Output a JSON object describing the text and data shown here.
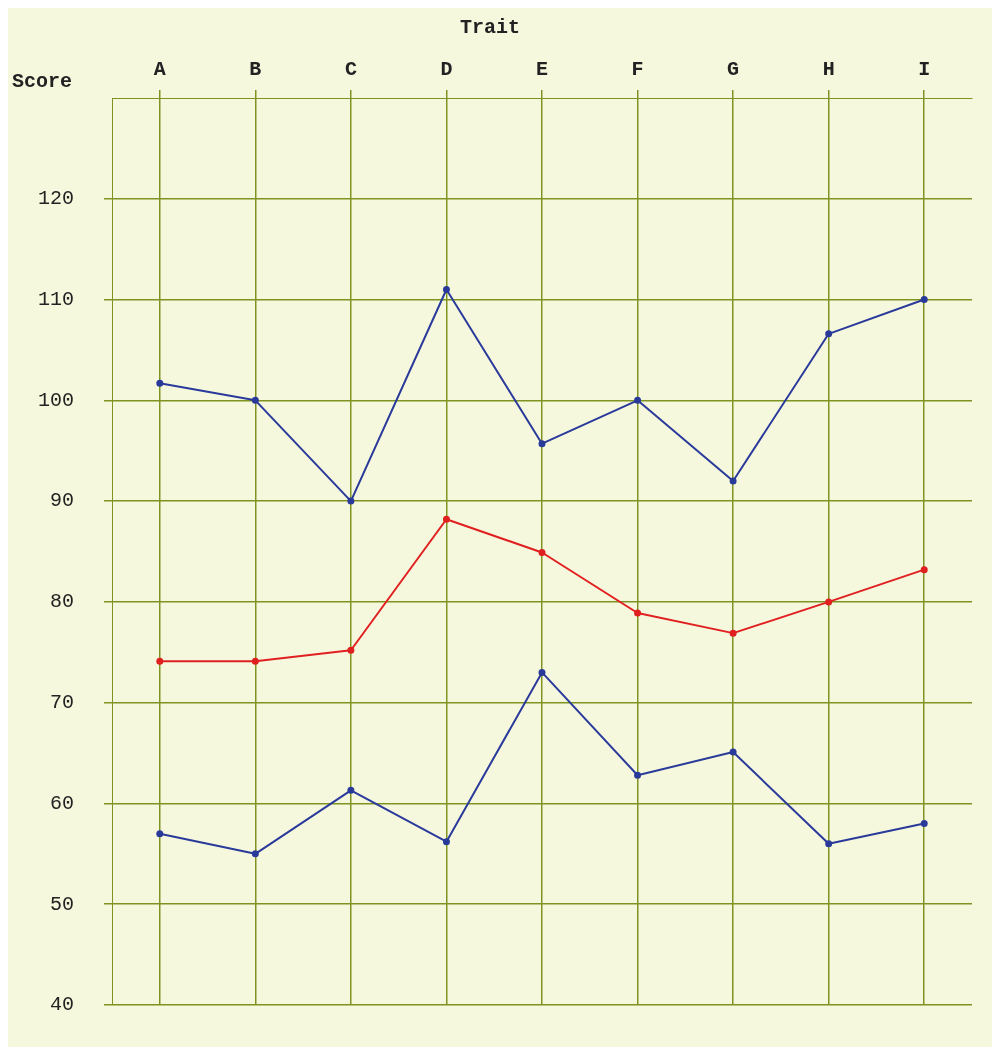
{
  "chart_data": {
    "type": "line",
    "title": "Trait",
    "ylabel": "Score",
    "categories": [
      "A",
      "B",
      "C",
      "D",
      "E",
      "F",
      "G",
      "H",
      "I"
    ],
    "series": [
      {
        "color": "#2a3a9a",
        "values": [
          101.7,
          100,
          90,
          111,
          95.7,
          100,
          92,
          106.6,
          110
        ]
      },
      {
        "color": "#e02020",
        "values": [
          74.1,
          74.1,
          75.2,
          88.2,
          84.9,
          78.9,
          76.9,
          80,
          83.2
        ]
      },
      {
        "color": "#2a3a9a",
        "values": [
          57,
          55,
          61.3,
          56.2,
          73,
          62.8,
          65.1,
          56,
          58
        ]
      }
    ],
    "ylim": [
      40,
      130
    ],
    "yticks": [
      40,
      50,
      60,
      70,
      80,
      90,
      100,
      110,
      120
    ],
    "grid": true,
    "legend": false,
    "marker": "circle",
    "line_style": "solid"
  }
}
